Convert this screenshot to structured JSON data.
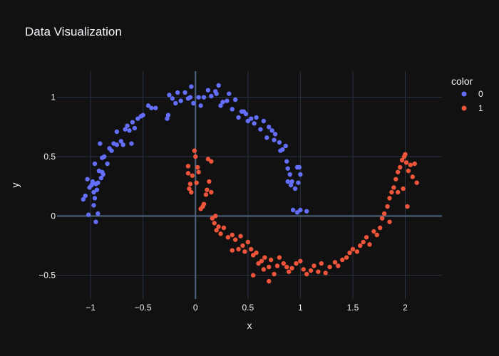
{
  "chart_data": {
    "type": "scatter",
    "title": "Data Visualization",
    "xlabel": "x",
    "ylabel": "y",
    "xlim": [
      -1.32,
      2.35
    ],
    "ylim": [
      -0.7,
      1.22
    ],
    "xticks": [
      -1,
      -0.5,
      0,
      0.5,
      1,
      1.5,
      2
    ],
    "xtick_labels": [
      "−1",
      "−0.5",
      "0",
      "0.5",
      "1",
      "1.5",
      "2"
    ],
    "yticks": [
      -0.5,
      0,
      0.5,
      1
    ],
    "ytick_labels": [
      "−0.5",
      "0",
      "0.5",
      "1"
    ],
    "grid": true,
    "legend_title": "color",
    "legend_placement": "top-right",
    "series": [
      {
        "name": "0",
        "color": "#636efa",
        "points": [
          [
            -1.07,
            0.14
          ],
          [
            -1.05,
            0.17
          ],
          [
            -1.03,
            0.31
          ],
          [
            -1.01,
            0.24
          ],
          [
            -1.02,
            0.01
          ],
          [
            -0.99,
            0.26
          ],
          [
            -0.98,
            0.29
          ],
          [
            -0.97,
            0.2
          ],
          [
            -0.96,
            0.44
          ],
          [
            -0.95,
            0.27
          ],
          [
            -0.94,
            0.22
          ],
          [
            -0.93,
            0.02
          ],
          [
            -0.93,
            0.28
          ],
          [
            -0.92,
            0.38
          ],
          [
            -0.91,
            0.61
          ],
          [
            -0.9,
            0.32
          ],
          [
            -0.89,
            0.49
          ],
          [
            -0.88,
            0.35
          ],
          [
            -0.87,
            0.5
          ],
          [
            -0.96,
            0.15
          ],
          [
            -0.97,
            0.09
          ],
          [
            -0.95,
            -0.05
          ],
          [
            -0.84,
            0.44
          ],
          [
            -0.82,
            0.57
          ],
          [
            -0.8,
            0.55
          ],
          [
            -0.78,
            0.61
          ],
          [
            -0.75,
            0.6
          ],
          [
            -0.75,
            0.71
          ],
          [
            -0.71,
            0.63
          ],
          [
            -0.69,
            0.6
          ],
          [
            -0.67,
            0.73
          ],
          [
            -0.65,
            0.76
          ],
          [
            -0.63,
            0.72
          ],
          [
            -0.61,
            0.61
          ],
          [
            -0.6,
            0.79
          ],
          [
            -0.58,
            0.74
          ],
          [
            -0.55,
            0.82
          ],
          [
            -0.52,
            0.84
          ],
          [
            -0.5,
            0.85
          ],
          [
            -0.45,
            0.93
          ],
          [
            -0.42,
            0.91
          ],
          [
            -0.38,
            0.91
          ],
          [
            -0.27,
            0.82
          ],
          [
            -0.26,
            0.85
          ],
          [
            -0.25,
            1.02
          ],
          [
            -0.22,
            0.99
          ],
          [
            -0.19,
            0.95
          ],
          [
            -0.17,
            1.04
          ],
          [
            -0.14,
            0.97
          ],
          [
            -0.1,
            1.04
          ],
          [
            -0.07,
            0.99
          ],
          [
            -0.05,
            1.0
          ],
          [
            -0.04,
            1.09
          ],
          [
            -0.02,
            0.95
          ],
          [
            0.03,
            1.0
          ],
          [
            0.05,
            0.93
          ],
          [
            0.08,
            1.0
          ],
          [
            0.12,
            1.06
          ],
          [
            0.15,
            1.01
          ],
          [
            0.19,
            1.05
          ],
          [
            0.2,
            1.03
          ],
          [
            0.22,
            1.1
          ],
          [
            0.24,
            0.93
          ],
          [
            0.26,
            0.96
          ],
          [
            0.3,
            0.97
          ],
          [
            0.32,
            1.03
          ],
          [
            0.35,
            0.9
          ],
          [
            0.38,
            0.98
          ],
          [
            0.41,
            0.83
          ],
          [
            0.44,
            0.88
          ],
          [
            0.46,
            0.88
          ],
          [
            0.48,
            0.86
          ],
          [
            0.5,
            0.8
          ],
          [
            0.53,
            0.82
          ],
          [
            0.56,
            0.78
          ],
          [
            0.58,
            0.83
          ],
          [
            0.62,
            0.73
          ],
          [
            0.65,
            0.8
          ],
          [
            0.68,
            0.66
          ],
          [
            0.7,
            0.75
          ],
          [
            0.73,
            0.72
          ],
          [
            0.75,
            0.64
          ],
          [
            0.76,
            0.69
          ],
          [
            0.8,
            0.62
          ],
          [
            0.81,
            0.55
          ],
          [
            0.83,
            0.56
          ],
          [
            0.86,
            0.59
          ],
          [
            0.87,
            0.46
          ],
          [
            0.88,
            0.4
          ],
          [
            0.9,
            0.35
          ],
          [
            0.92,
            0.29
          ],
          [
            0.95,
            0.23
          ],
          [
            0.97,
            0.41
          ],
          [
            0.99,
            0.41
          ],
          [
            0.98,
            0.28
          ],
          [
            1.0,
            0.35
          ],
          [
            1.0,
            0.05
          ],
          [
            0.97,
            0.03
          ],
          [
            0.93,
            0.05
          ],
          [
            1.06,
            0.04
          ],
          [
            0.88,
            0.29
          ],
          [
            0.91,
            0.26
          ],
          [
            -0.89,
            0.37
          ],
          [
            -0.98,
            0.28
          ]
        ]
      },
      {
        "name": "1",
        "color": "#ef553b",
        "points": [
          [
            -0.07,
            0.42
          ],
          [
            -0.07,
            0.36
          ],
          [
            -0.06,
            0.23
          ],
          [
            -0.05,
            0.27
          ],
          [
            -0.04,
            0.2
          ],
          [
            -0.03,
            0.34
          ],
          [
            -0.01,
            0.55
          ],
          [
            0.0,
            0.5
          ],
          [
            0.01,
            0.28
          ],
          [
            0.02,
            0.41
          ],
          [
            0.03,
            0.37
          ],
          [
            0.05,
            0.06
          ],
          [
            0.07,
            0.08
          ],
          [
            0.08,
            0.1
          ],
          [
            0.1,
            0.18
          ],
          [
            0.11,
            0.22
          ],
          [
            0.12,
            0.48
          ],
          [
            0.13,
            0.29
          ],
          [
            0.15,
            0.46
          ],
          [
            0.15,
            0.2
          ],
          [
            0.16,
            -0.02
          ],
          [
            0.18,
            -0.06
          ],
          [
            0.19,
            0.0
          ],
          [
            0.2,
            -0.12
          ],
          [
            0.22,
            -0.09
          ],
          [
            0.24,
            -0.15
          ],
          [
            0.27,
            -0.1
          ],
          [
            0.31,
            -0.18
          ],
          [
            0.35,
            -0.16
          ],
          [
            0.38,
            -0.2
          ],
          [
            0.41,
            -0.28
          ],
          [
            0.43,
            -0.17
          ],
          [
            0.47,
            -0.3
          ],
          [
            0.5,
            -0.22
          ],
          [
            0.53,
            -0.28
          ],
          [
            0.55,
            -0.33
          ],
          [
            0.58,
            -0.31
          ],
          [
            0.6,
            -0.4
          ],
          [
            0.63,
            -0.38
          ],
          [
            0.66,
            -0.35
          ],
          [
            0.7,
            -0.43
          ],
          [
            0.72,
            -0.37
          ],
          [
            0.75,
            -0.49
          ],
          [
            0.78,
            -0.42
          ],
          [
            0.8,
            -0.35
          ],
          [
            0.84,
            -0.4
          ],
          [
            0.87,
            -0.43
          ],
          [
            0.89,
            -0.47
          ],
          [
            0.92,
            -0.44
          ],
          [
            0.96,
            -0.4
          ],
          [
            1.0,
            -0.38
          ],
          [
            1.03,
            -0.45
          ],
          [
            1.06,
            -0.49
          ],
          [
            1.1,
            -0.46
          ],
          [
            1.13,
            -0.42
          ],
          [
            1.17,
            -0.47
          ],
          [
            1.2,
            -0.4
          ],
          [
            1.24,
            -0.48
          ],
          [
            1.28,
            -0.43
          ],
          [
            1.33,
            -0.39
          ],
          [
            1.36,
            -0.42
          ],
          [
            1.4,
            -0.37
          ],
          [
            1.44,
            -0.35
          ],
          [
            1.47,
            -0.31
          ],
          [
            1.5,
            -0.28
          ],
          [
            1.54,
            -0.3
          ],
          [
            1.57,
            -0.25
          ],
          [
            1.6,
            -0.22
          ],
          [
            1.63,
            -0.18
          ],
          [
            1.66,
            -0.24
          ],
          [
            1.7,
            -0.13
          ],
          [
            1.73,
            -0.16
          ],
          [
            1.76,
            -0.1
          ],
          [
            1.78,
            -0.02
          ],
          [
            1.8,
            0.02
          ],
          [
            1.83,
            0.08
          ],
          [
            1.85,
            0.15
          ],
          [
            1.87,
            0.2
          ],
          [
            1.89,
            0.24
          ],
          [
            1.91,
            0.31
          ],
          [
            1.93,
            0.37
          ],
          [
            1.95,
            0.41
          ],
          [
            1.97,
            0.47
          ],
          [
            1.99,
            0.5
          ],
          [
            2.01,
            0.45
          ],
          [
            2.03,
            0.38
          ],
          [
            2.05,
            0.43
          ],
          [
            2.07,
            0.33
          ],
          [
            2.09,
            0.44
          ],
          [
            2.11,
            0.28
          ],
          [
            2.0,
            0.52
          ],
          [
            1.98,
            0.23
          ],
          [
            1.93,
            0.2
          ],
          [
            2.02,
            0.08
          ],
          [
            1.85,
            -0.05
          ],
          [
            0.35,
            -0.29
          ],
          [
            0.45,
            -0.25
          ],
          [
            0.65,
            -0.45
          ],
          [
            0.55,
            -0.5
          ],
          [
            0.7,
            -0.55
          ]
        ]
      }
    ]
  }
}
